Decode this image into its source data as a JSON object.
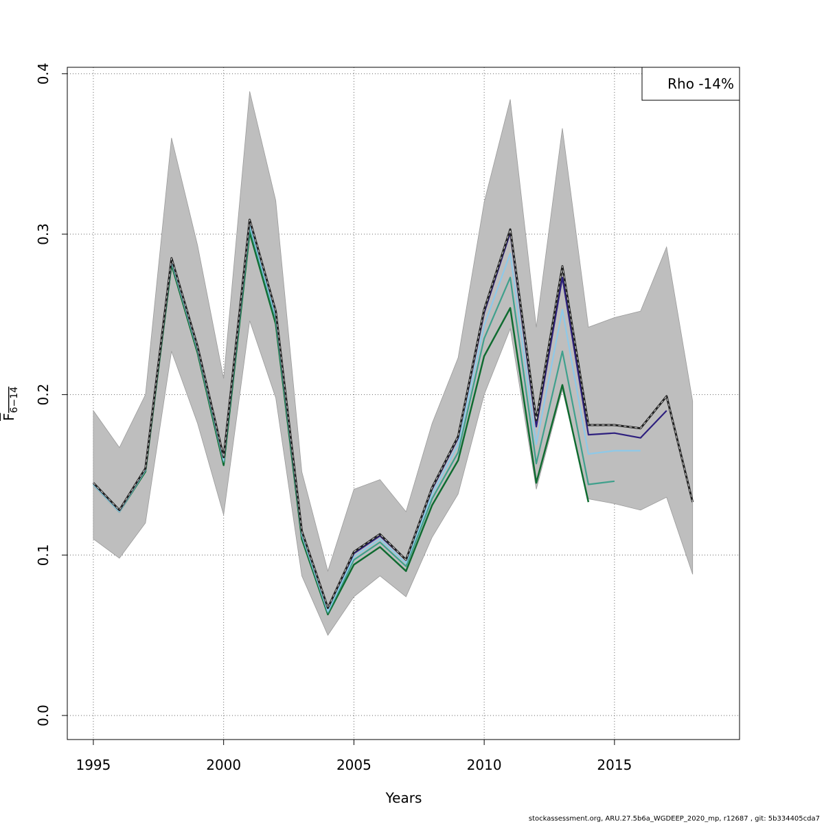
{
  "chart_data": {
    "type": "line",
    "title": "",
    "xlabel": "Years",
    "ylabel": "F",
    "ylabel_subscript": "6−14",
    "xlim": [
      1994,
      2019.8
    ],
    "ylim": [
      -0.015,
      0.404
    ],
    "xticks": [
      1995,
      2000,
      2005,
      2010,
      2015
    ],
    "yticks": [
      0.0,
      0.1,
      0.2,
      0.3,
      0.4
    ],
    "ytick_labels": [
      "0.0",
      "0.1",
      "0.2",
      "0.3",
      "0.4"
    ],
    "grid": true,
    "legend": {
      "placement": "top-right",
      "text": "Rho -14%"
    },
    "band": {
      "x": [
        1995,
        1996,
        1997,
        1998,
        1999,
        2000,
        2001,
        2002,
        2003,
        2004,
        2005,
        2006,
        2007,
        2008,
        2009,
        2010,
        2011,
        2012,
        2013,
        2014,
        2015,
        2016,
        2017,
        2018
      ],
      "upper": [
        0.19,
        0.167,
        0.2,
        0.36,
        0.293,
        0.21,
        0.389,
        0.321,
        0.152,
        0.09,
        0.141,
        0.147,
        0.127,
        0.182,
        0.223,
        0.32,
        0.384,
        0.242,
        0.366,
        0.242,
        0.248,
        0.252,
        0.292,
        0.196
      ],
      "lower": [
        0.11,
        0.098,
        0.12,
        0.227,
        0.182,
        0.125,
        0.246,
        0.198,
        0.087,
        0.05,
        0.074,
        0.087,
        0.074,
        0.111,
        0.138,
        0.2,
        0.241,
        0.141,
        0.203,
        0.135,
        0.132,
        0.128,
        0.136,
        0.088
      ],
      "color": "#bebebe"
    },
    "series": [
      {
        "x": [
          1995,
          1996,
          1997,
          1998,
          1999,
          2000,
          2001,
          2002,
          2003,
          2004,
          2005,
          2006,
          2007,
          2008,
          2009,
          2010,
          2011,
          2012,
          2013,
          2014,
          2015,
          2016,
          2017,
          2018
        ],
        "values": [
          0.145,
          0.128,
          0.154,
          0.285,
          0.23,
          0.161,
          0.309,
          0.252,
          0.115,
          0.067,
          0.102,
          0.113,
          0.097,
          0.142,
          0.174,
          0.253,
          0.303,
          0.184,
          0.28,
          0.181,
          0.181,
          0.179,
          0.199,
          0.133
        ],
        "color": "#222222",
        "style": "dashed",
        "width": 2.5
      },
      {
        "x": [
          1995,
          1996,
          1997,
          1998,
          1999,
          2000,
          2001,
          2002,
          2003,
          2004,
          2005,
          2006,
          2007,
          2008,
          2009,
          2010,
          2011,
          2012,
          2013,
          2014,
          2015,
          2016,
          2017
        ],
        "values": [
          0.145,
          0.128,
          0.154,
          0.285,
          0.23,
          0.161,
          0.309,
          0.252,
          0.115,
          0.067,
          0.101,
          0.112,
          0.097,
          0.141,
          0.173,
          0.251,
          0.301,
          0.18,
          0.273,
          0.175,
          0.176,
          0.173,
          0.19
        ],
        "color": "#2d1f7e",
        "style": "solid",
        "width": 2.2
      },
      {
        "x": [
          1995,
          1996,
          1997,
          1998,
          1999,
          2000,
          2001,
          2002,
          2003,
          2004,
          2005,
          2006,
          2007,
          2008,
          2009,
          2010,
          2011,
          2012,
          2013,
          2014,
          2015,
          2016
        ],
        "values": [
          0.144,
          0.127,
          0.153,
          0.283,
          0.228,
          0.159,
          0.306,
          0.249,
          0.113,
          0.065,
          0.099,
          0.11,
          0.095,
          0.138,
          0.169,
          0.243,
          0.288,
          0.169,
          0.253,
          0.163,
          0.165,
          0.165
        ],
        "color": "#8ec9e8",
        "style": "solid",
        "width": 2.2
      },
      {
        "x": [
          1995,
          1996,
          1997,
          1998,
          1999,
          2000,
          2001,
          2002,
          2003,
          2004,
          2005,
          2006,
          2007,
          2008,
          2009,
          2010,
          2011,
          2012,
          2013,
          2014,
          2015
        ],
        "values": [
          0.144,
          0.127,
          0.153,
          0.283,
          0.228,
          0.158,
          0.304,
          0.247,
          0.112,
          0.064,
          0.097,
          0.108,
          0.093,
          0.135,
          0.164,
          0.235,
          0.273,
          0.157,
          0.227,
          0.144,
          0.146
        ],
        "color": "#3fa08c",
        "style": "solid",
        "width": 2.2
      },
      {
        "x": [
          1995,
          1996,
          1997,
          1998,
          1999,
          2000,
          2001,
          2002,
          2003,
          2004,
          2005,
          2006,
          2007,
          2008,
          2009,
          2010,
          2011,
          2012,
          2013,
          2014
        ],
        "values": [
          0.144,
          0.127,
          0.152,
          0.281,
          0.226,
          0.156,
          0.301,
          0.244,
          0.11,
          0.063,
          0.094,
          0.105,
          0.09,
          0.131,
          0.159,
          0.224,
          0.254,
          0.145,
          0.206,
          0.133
        ],
        "color": "#0f6b30",
        "style": "solid",
        "width": 2.5
      }
    ]
  },
  "footer": "stockassessment.org, ARU.27.5b6a_WGDEEP_2020_mp, r12687 , git: 5b334405cda7"
}
